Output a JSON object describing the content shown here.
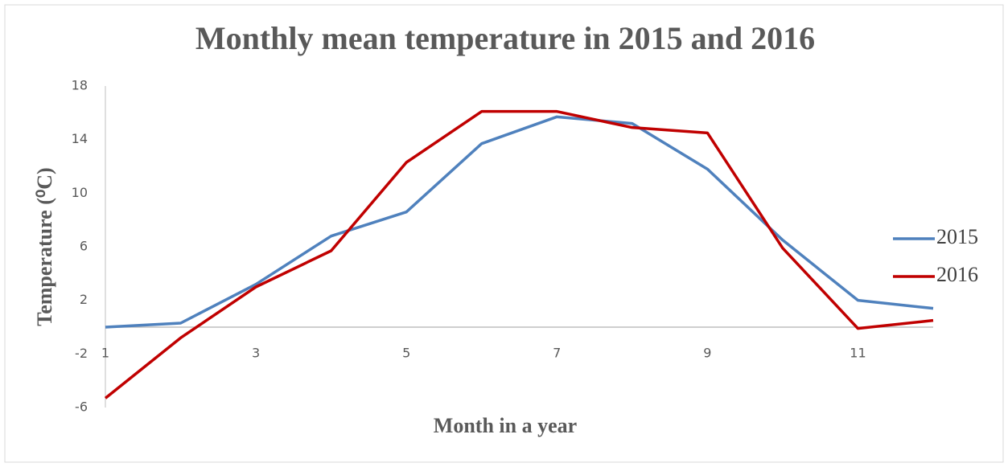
{
  "chart_data": {
    "type": "line",
    "title": "Monthly mean temperature in 2015 and 2016",
    "x_label": "Month in a year",
    "y_label": "Temperature (⁰C)",
    "x": [
      1,
      2,
      3,
      4,
      5,
      6,
      7,
      8,
      9,
      10,
      11,
      12
    ],
    "series": [
      {
        "name": "2015",
        "color": "#4f81bd",
        "values": [
          0,
          0.3,
          3.2,
          6.8,
          8.6,
          13.7,
          15.7,
          15.2,
          11.8,
          6.5,
          2,
          1.4
        ]
      },
      {
        "name": "2016",
        "color": "#c00000",
        "values": [
          -5.3,
          -0.8,
          3,
          5.7,
          12.3,
          16.1,
          16.1,
          14.9,
          14.5,
          5.9,
          -0.1,
          0.5
        ]
      }
    ],
    "xlim": [
      1,
      12
    ],
    "xticks": [
      1,
      3,
      5,
      7,
      9,
      11
    ],
    "ylim": [
      -6,
      18
    ],
    "yticks": [
      -6,
      -2,
      2,
      6,
      10,
      14,
      18
    ],
    "grid": false,
    "legend": "right"
  }
}
